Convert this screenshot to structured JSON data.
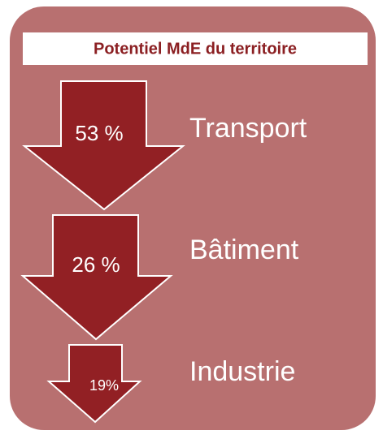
{
  "title": "Potentiel MdE du territoire",
  "items": [
    {
      "label": "53 %",
      "name": "Transport"
    },
    {
      "label": "26 %",
      "name": "Bâtiment"
    },
    {
      "label": "19%",
      "name": "Industrie"
    }
  ]
}
